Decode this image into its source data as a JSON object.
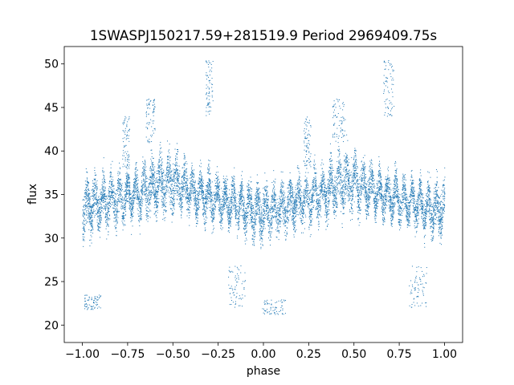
{
  "chart_data": {
    "type": "scatter",
    "title": "1SWASPJ150217.59+281519.9 Period 2969409.75s",
    "xlabel": "phase",
    "ylabel": "flux",
    "xlim": [
      -1.1,
      1.1
    ],
    "ylim": [
      18.0,
      52.0
    ],
    "xticks": [
      -1.0,
      -0.75,
      -0.5,
      -0.25,
      0.0,
      0.25,
      0.5,
      0.75,
      1.0
    ],
    "xtick_labels": [
      "−1.00",
      "−0.75",
      "−0.50",
      "−0.25",
      "0.00",
      "0.25",
      "0.50",
      "0.75",
      "1.00"
    ],
    "yticks": [
      20,
      25,
      30,
      35,
      40,
      45,
      50
    ],
    "ytick_labels": [
      "20",
      "25",
      "30",
      "35",
      "40",
      "45",
      "50"
    ],
    "grid": false,
    "legend": "none",
    "point_color": "#1f77b4",
    "series": [
      {
        "x": [
          -1.0,
          -0.95,
          -0.9,
          -0.85,
          -0.8,
          -0.75,
          -0.7,
          -0.65,
          -0.6,
          -0.55,
          -0.5,
          -0.45,
          -0.4,
          -0.35,
          -0.3,
          -0.25,
          -0.2,
          -0.15,
          -0.1,
          -0.05,
          0.0,
          0.05,
          0.1,
          0.15,
          0.2,
          0.25,
          0.3,
          0.35,
          0.4,
          0.45,
          0.5,
          0.55,
          0.6,
          0.65,
          0.7,
          0.75,
          0.8,
          0.85,
          0.9,
          0.95,
          1.0
        ],
        "y_center": [
          33.5,
          33.8,
          34.0,
          34.5,
          34.5,
          34.8,
          35.0,
          35.5,
          36.0,
          36.5,
          36.5,
          36.0,
          35.5,
          35.0,
          34.8,
          34.5,
          34.2,
          34.0,
          33.5,
          33.0,
          33.0,
          33.2,
          33.5,
          34.0,
          34.5,
          34.5,
          35.0,
          35.5,
          36.0,
          36.5,
          36.5,
          36.0,
          35.5,
          35.0,
          34.8,
          34.5,
          34.2,
          34.0,
          33.5,
          33.2,
          33.5
        ],
        "y_spread": [
          4.0,
          3.8,
          3.5,
          3.5,
          3.5,
          3.2,
          3.0,
          3.5,
          4.0,
          4.0,
          4.0,
          3.5,
          3.0,
          3.0,
          3.0,
          3.0,
          3.0,
          3.0,
          3.2,
          3.5,
          3.5,
          3.5,
          3.5,
          3.5,
          3.5,
          3.5,
          3.2,
          3.5,
          4.0,
          4.0,
          4.0,
          3.5,
          3.0,
          3.0,
          3.0,
          3.0,
          3.0,
          3.2,
          3.5,
          3.8,
          4.0
        ]
      }
    ],
    "outlier_groups": [
      {
        "x": [
          -0.99,
          -0.9
        ],
        "y": [
          21.8,
          23.5
        ]
      },
      {
        "x": [
          -0.01,
          0.12
        ],
        "y": [
          21.2,
          23.0
        ]
      },
      {
        "x": [
          -0.65,
          -0.6
        ],
        "y": [
          41.0,
          46.0
        ]
      },
      {
        "x": [
          0.38,
          0.45
        ],
        "y": [
          41.0,
          46.0
        ]
      },
      {
        "x": [
          -0.32,
          -0.28
        ],
        "y": [
          44.0,
          50.5
        ]
      },
      {
        "x": [
          0.66,
          0.72
        ],
        "y": [
          44.0,
          50.5
        ]
      },
      {
        "x": [
          -0.2,
          -0.1
        ],
        "y": [
          22.0,
          27.0
        ]
      },
      {
        "x": [
          0.8,
          0.9
        ],
        "y": [
          22.0,
          27.0
        ]
      },
      {
        "x": [
          -0.78,
          -0.74
        ],
        "y": [
          38.0,
          44.0
        ]
      },
      {
        "x": [
          0.22,
          0.26
        ],
        "y": [
          38.0,
          44.0
        ]
      }
    ]
  }
}
